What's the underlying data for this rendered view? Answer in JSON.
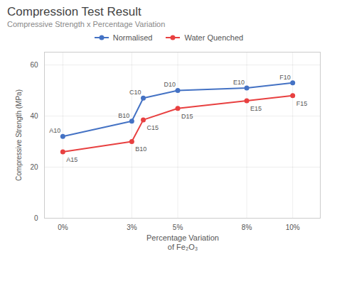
{
  "chart_data": {
    "type": "line",
    "title": "Compression Test Result",
    "subtitle": "Compressive Strength x Percentage Variation",
    "xlabel": "Percentage Variation\nof Fe₂O₃",
    "ylabel": "Compressive Strength (MPa)",
    "x": [
      0,
      3,
      3.5,
      5,
      8,
      10
    ],
    "series": [
      {
        "name": "Normalised",
        "color": "#4472C4",
        "marker": "circle",
        "values": [
          32,
          38,
          47,
          50,
          51,
          53
        ],
        "labels": [
          "A10",
          "B10",
          "C10",
          "D10",
          "E10",
          "F10"
        ]
      },
      {
        "name": "Water Quenched",
        "color": "#E84040",
        "marker": "circle",
        "values": [
          26,
          30,
          38.5,
          43,
          46,
          48
        ],
        "labels": [
          "A15",
          "B10",
          "C15",
          "D15",
          "E15",
          "F15"
        ]
      }
    ],
    "xlim": [
      -0.8,
      11.2
    ],
    "xticks": [
      {
        "value": 0,
        "label": "0%"
      },
      {
        "value": 3,
        "label": "3%"
      },
      {
        "value": 5,
        "label": "5%"
      },
      {
        "value": 8,
        "label": "8%"
      },
      {
        "value": 10,
        "label": "10%"
      }
    ],
    "ylim": [
      0,
      65
    ],
    "yticks": [
      0,
      20,
      40,
      60
    ],
    "grid": true,
    "legend": "top"
  }
}
